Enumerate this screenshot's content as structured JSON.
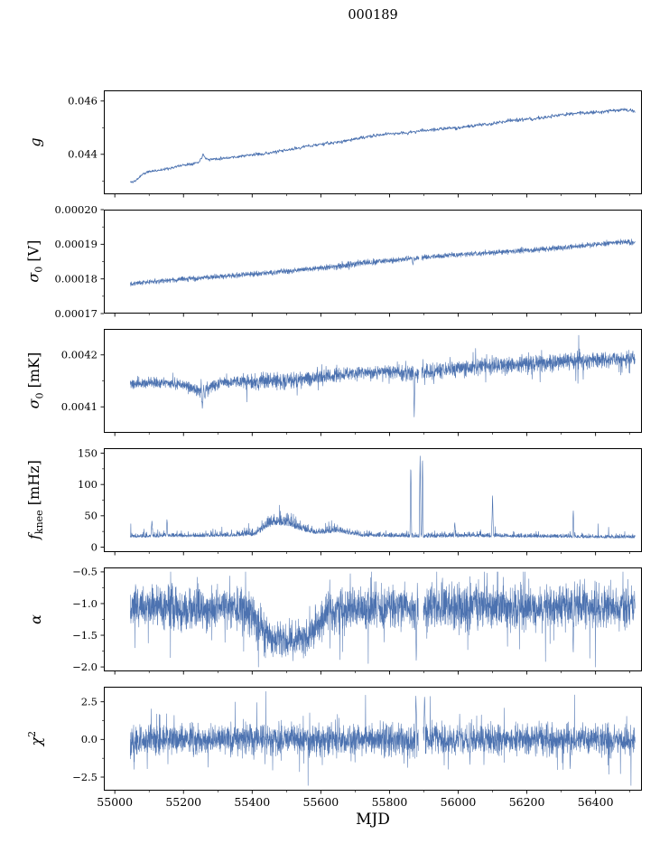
{
  "title": "000189",
  "xlabel": "MJD",
  "line_color": "#4c72b0",
  "axis_color": "#000000",
  "chart_data": {
    "type": "line",
    "title": "000189",
    "xlabel": "MJD",
    "legend": "none",
    "grid": false,
    "x_range": [
      54968,
      56535
    ],
    "x_data_range": [
      55045,
      56515
    ],
    "x_ticks": [
      55000,
      55200,
      55400,
      55600,
      55800,
      56000,
      56200,
      56400
    ],
    "x_tick_labels": [
      "55000",
      "55200",
      "55400",
      "55600",
      "55800",
      "56000",
      "56200",
      "56400"
    ],
    "x_ticks_minor": [
      55100,
      55300,
      55500,
      55700,
      55900,
      56100,
      56300,
      56500
    ],
    "panels": [
      {
        "name": "g",
        "ylabel_parts": [
          {
            "t": "g",
            "style": "italic"
          }
        ],
        "ylim": [
          0.0425,
          0.0464
        ],
        "yticks": [
          0.044,
          0.046
        ],
        "ytick_labels": [
          "0.044",
          "0.046"
        ],
        "yticks_minor": [
          0.043,
          0.045
        ],
        "points": 1000,
        "seed": 11,
        "stroke": 0.9,
        "tails": false,
        "noise_type": "sym",
        "trend": [
          [
            55045,
            0.04295
          ],
          [
            55060,
            0.043
          ],
          [
            55080,
            0.04325
          ],
          [
            55100,
            0.04335
          ],
          [
            55150,
            0.04345
          ],
          [
            55200,
            0.0436
          ],
          [
            55245,
            0.0437
          ],
          [
            55257,
            0.044
          ],
          [
            55270,
            0.0438
          ],
          [
            55310,
            0.04385
          ],
          [
            55350,
            0.0439
          ],
          [
            55400,
            0.04398
          ],
          [
            55450,
            0.04405
          ],
          [
            55500,
            0.04415
          ],
          [
            55550,
            0.04428
          ],
          [
            55600,
            0.04438
          ],
          [
            55650,
            0.04445
          ],
          [
            55700,
            0.04458
          ],
          [
            55750,
            0.04468
          ],
          [
            55800,
            0.04478
          ],
          [
            55850,
            0.0448
          ],
          [
            55900,
            0.0449
          ],
          [
            55950,
            0.04495
          ],
          [
            56000,
            0.045
          ],
          [
            56050,
            0.04508
          ],
          [
            56100,
            0.04515
          ],
          [
            56150,
            0.04528
          ],
          [
            56200,
            0.0453
          ],
          [
            56250,
            0.04538
          ],
          [
            56300,
            0.04548
          ],
          [
            56350,
            0.04555
          ],
          [
            56400,
            0.04558
          ],
          [
            56450,
            0.04565
          ],
          [
            56490,
            0.04568
          ],
          [
            56515,
            0.0456
          ]
        ],
        "noise": [
          [
            55045,
            5e-05
          ],
          [
            56515,
            7e-05
          ]
        ],
        "spikes": [],
        "gaps": []
      },
      {
        "name": "sigma0-v",
        "ylabel_parts": [
          {
            "t": "σ",
            "style": "italic"
          },
          {
            "t": "0",
            "style": "sub"
          },
          {
            "t": " [V]",
            "style": "normal"
          }
        ],
        "ylim": [
          0.00017,
          0.0002
        ],
        "yticks": [
          0.00017,
          0.00018,
          0.00019,
          0.0002
        ],
        "ytick_labels": [
          "0.00017",
          "0.00018",
          "0.00019",
          "0.00020"
        ],
        "yticks_minor": [
          0.000175,
          0.000185,
          0.000195
        ],
        "points": 2600,
        "seed": 22,
        "stroke": 0.6,
        "tails": false,
        "noise_type": "sym",
        "trend": [
          [
            55045,
            0.0001787
          ],
          [
            55150,
            0.0001795
          ],
          [
            55250,
            0.0001803
          ],
          [
            55350,
            0.000181
          ],
          [
            55450,
            0.0001818
          ],
          [
            55550,
            0.0001827
          ],
          [
            55650,
            0.0001837
          ],
          [
            55720,
            0.0001846
          ],
          [
            55800,
            0.0001853
          ],
          [
            55900,
            0.0001862
          ],
          [
            56000,
            0.000187
          ],
          [
            56100,
            0.0001876
          ],
          [
            56200,
            0.0001883
          ],
          [
            56300,
            0.000189
          ],
          [
            56400,
            0.00019
          ],
          [
            56470,
            0.0001907
          ],
          [
            56515,
            0.0001906
          ]
        ],
        "noise": [
          [
            55045,
            6.5e-07
          ],
          [
            55600,
            7.5e-07
          ],
          [
            55680,
            1.05e-06
          ],
          [
            55760,
            7.5e-07
          ],
          [
            56515,
            7.5e-07
          ]
        ],
        "spikes": [
          [
            55868,
            0.000184
          ]
        ],
        "gaps": [
          [
            55886,
            55893
          ]
        ]
      },
      {
        "name": "sigma0-mk",
        "ylabel_parts": [
          {
            "t": "σ",
            "style": "italic"
          },
          {
            "t": "0",
            "style": "sub"
          },
          {
            "t": " [mK]",
            "style": "normal"
          }
        ],
        "ylim": [
          0.00405,
          0.00425
        ],
        "yticks": [
          0.0041,
          0.0042
        ],
        "ytick_labels": [
          "0.0041",
          "0.0042"
        ],
        "yticks_minor": [
          0.00415
        ],
        "points": 2600,
        "seed": 33,
        "stroke": 0.6,
        "tails": true,
        "noise_type": "sym",
        "trend": [
          [
            55045,
            0.004143
          ],
          [
            55150,
            0.004147
          ],
          [
            55215,
            0.00414
          ],
          [
            55255,
            0.004128
          ],
          [
            55295,
            0.004145
          ],
          [
            55350,
            0.004149
          ],
          [
            55420,
            0.004149
          ],
          [
            55500,
            0.004151
          ],
          [
            55560,
            0.004154
          ],
          [
            55620,
            0.004159
          ],
          [
            55700,
            0.004164
          ],
          [
            55800,
            0.004167
          ],
          [
            55880,
            0.004163
          ],
          [
            55950,
            0.004171
          ],
          [
            56000,
            0.004174
          ],
          [
            56100,
            0.004179
          ],
          [
            56200,
            0.004184
          ],
          [
            56300,
            0.004187
          ],
          [
            56400,
            0.004189
          ],
          [
            56515,
            0.004194
          ]
        ],
        "noise": [
          [
            55045,
            9e-06
          ],
          [
            55200,
            1e-05
          ],
          [
            55260,
            1.3e-05
          ],
          [
            55320,
            1e-05
          ],
          [
            55400,
            1.5e-05
          ],
          [
            55500,
            1.5e-05
          ],
          [
            55600,
            1.3e-05
          ],
          [
            55700,
            1.2e-05
          ],
          [
            55800,
            1.35e-05
          ],
          [
            55900,
            1.5e-05
          ],
          [
            56000,
            1.55e-05
          ],
          [
            56100,
            1.5e-05
          ],
          [
            56200,
            1.55e-05
          ],
          [
            56300,
            1.5e-05
          ],
          [
            56400,
            1.55e-05
          ],
          [
            56515,
            1.55e-05
          ]
        ],
        "spikes": [
          [
            55255,
            0.004095
          ],
          [
            55872,
            0.004078
          ]
        ],
        "gaps": [
          [
            55886,
            55893
          ]
        ]
      },
      {
        "name": "fknee",
        "ylabel_parts": [
          {
            "t": "f",
            "style": "italic"
          },
          {
            "t": "knee",
            "style": "sub"
          },
          {
            "t": " [mHz]",
            "style": "normal"
          }
        ],
        "ylim": [
          -8,
          158
        ],
        "yticks": [
          0,
          50,
          100,
          150
        ],
        "ytick_labels": [
          "0",
          "50",
          "100",
          "150"
        ],
        "yticks_minor": [
          25,
          75,
          125
        ],
        "points": 2600,
        "seed": 44,
        "stroke": 0.6,
        "tails": true,
        "noise_type": "pos",
        "clamp": [
          2,
          153
        ],
        "trend": [
          [
            55045,
            17
          ],
          [
            55150,
            18
          ],
          [
            55250,
            18
          ],
          [
            55350,
            19
          ],
          [
            55410,
            21
          ],
          [
            55445,
            36
          ],
          [
            55470,
            41
          ],
          [
            55500,
            39
          ],
          [
            55530,
            33
          ],
          [
            55560,
            27
          ],
          [
            55590,
            23
          ],
          [
            55620,
            25
          ],
          [
            55650,
            27
          ],
          [
            55680,
            23
          ],
          [
            55720,
            19
          ],
          [
            55800,
            18
          ],
          [
            55900,
            17
          ],
          [
            56000,
            18
          ],
          [
            56100,
            18
          ],
          [
            56200,
            17
          ],
          [
            56300,
            17
          ],
          [
            56400,
            16
          ],
          [
            56515,
            16
          ]
        ],
        "noise": [
          [
            55045,
            6
          ],
          [
            55150,
            7
          ],
          [
            55250,
            6
          ],
          [
            55350,
            7
          ],
          [
            55410,
            9
          ],
          [
            55445,
            16
          ],
          [
            55480,
            18
          ],
          [
            55520,
            15
          ],
          [
            55560,
            11
          ],
          [
            55600,
            9
          ],
          [
            55650,
            11
          ],
          [
            55700,
            8
          ],
          [
            55800,
            6
          ],
          [
            55900,
            7
          ],
          [
            56000,
            7
          ],
          [
            56100,
            7
          ],
          [
            56200,
            6
          ],
          [
            56300,
            6
          ],
          [
            56400,
            6
          ],
          [
            56515,
            5
          ]
        ],
        "spikes": [
          [
            55108,
            44
          ],
          [
            55152,
            45
          ],
          [
            55862,
            136
          ],
          [
            55889,
            152
          ],
          [
            55896,
            150
          ],
          [
            55990,
            40
          ],
          [
            56100,
            86
          ],
          [
            56335,
            60
          ]
        ],
        "gaps": []
      },
      {
        "name": "alpha",
        "ylabel_parts": [
          {
            "t": "α",
            "style": "italic"
          }
        ],
        "ylim": [
          -2.07,
          -0.43
        ],
        "yticks": [
          -0.5,
          -1.0,
          -1.5,
          -2.0
        ],
        "ytick_labels": [
          "−0.5",
          "−1.0",
          "−1.5",
          "−2.0"
        ],
        "yticks_minor": [
          -0.75,
          -1.25,
          -1.75
        ],
        "points": 3000,
        "seed": 55,
        "stroke": 0.55,
        "tails": true,
        "noise_type": "sym",
        "clamp": [
          -2.0,
          -0.5
        ],
        "trend": [
          [
            55045,
            -1.02
          ],
          [
            55150,
            -1.05
          ],
          [
            55200,
            -1.1
          ],
          [
            55260,
            -1.12
          ],
          [
            55320,
            -1.05
          ],
          [
            55380,
            -1.1
          ],
          [
            55420,
            -1.35
          ],
          [
            55450,
            -1.55
          ],
          [
            55500,
            -1.6
          ],
          [
            55540,
            -1.55
          ],
          [
            55570,
            -1.45
          ],
          [
            55600,
            -1.3
          ],
          [
            55630,
            -1.12
          ],
          [
            55700,
            -1.08
          ],
          [
            55800,
            -1.05
          ],
          [
            55900,
            -1.05
          ],
          [
            56000,
            -1.06
          ],
          [
            56100,
            -1.05
          ],
          [
            56200,
            -1.06
          ],
          [
            56300,
            -1.05
          ],
          [
            56400,
            -1.04
          ],
          [
            56515,
            -1.03
          ]
        ],
        "noise": [
          [
            55045,
            0.3
          ],
          [
            55200,
            0.33
          ],
          [
            55300,
            0.3
          ],
          [
            55420,
            0.3
          ],
          [
            55500,
            0.28
          ],
          [
            55600,
            0.3
          ],
          [
            55700,
            0.32
          ],
          [
            56515,
            0.32
          ]
        ],
        "spikes": [
          [
            55878,
            -1.95
          ],
          [
            56335,
            -1.8
          ]
        ],
        "gaps": [
          [
            55884,
            55898
          ]
        ]
      },
      {
        "name": "chi2",
        "ylabel_parts": [
          {
            "t": "χ",
            "style": "italic"
          },
          {
            "t": "2",
            "style": "sup"
          }
        ],
        "ylim": [
          -3.4,
          3.5
        ],
        "yticks": [
          -2.5,
          0,
          2.5
        ],
        "ytick_labels": [
          "−2.5",
          "0.0",
          "2.5"
        ],
        "yticks_minor": [
          -1.25,
          1.25
        ],
        "points": 3000,
        "seed": 66,
        "stroke": 0.55,
        "tails": true,
        "noise_type": "sym",
        "clamp": [
          -3.05,
          3.2
        ],
        "trend": [
          [
            55045,
            0
          ],
          [
            56515,
            0
          ]
        ],
        "noise": [
          [
            55045,
            0.95
          ],
          [
            56515,
            0.95
          ]
        ],
        "spikes": [
          [
            55877,
            3.1
          ],
          [
            55902,
            3.0
          ]
        ],
        "gaps": [
          [
            55884,
            55898
          ]
        ]
      }
    ]
  }
}
